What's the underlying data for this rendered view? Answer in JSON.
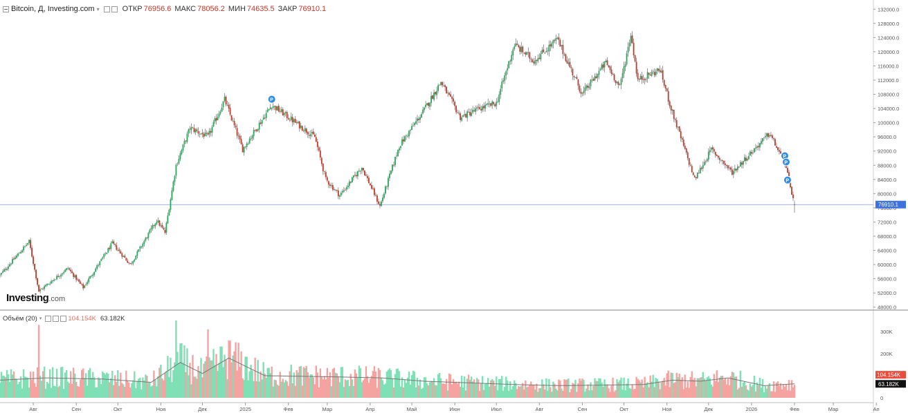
{
  "header": {
    "title": "Bitcoin, Д, Investing.com",
    "open_label": "ОТКР",
    "open_value": "76956.6",
    "high_label": "МАКС",
    "high_value": "78056.2",
    "low_label": "МИН",
    "low_value": "74635.5",
    "close_label": "ЗАКР",
    "close_value": "76910.1"
  },
  "volume_header": {
    "title": "Объём (20)",
    "value_a": "104.154K",
    "value_b": "63.182K"
  },
  "logo": {
    "main": "Investing",
    "suffix": ".com"
  },
  "colors": {
    "up": "#26a65b",
    "down": "#c0392b",
    "vol_up": "#7fe0b5",
    "vol_down": "#f5a3a0",
    "price_line": "#7b9ef0",
    "price_badge": "#3d72e0"
  },
  "chart_data": [
    {
      "type": "candlestick",
      "title": "Bitcoin, Д, Investing.com",
      "y_ticks": [
        "48000.0",
        "52000.0",
        "56000.0",
        "60000.0",
        "64000.0",
        "68000.0",
        "72000.0",
        "76000.0",
        "80000.0",
        "84000.0",
        "88000.0",
        "92000.0",
        "96000.0",
        "100000.0",
        "104000.0",
        "108000.0",
        "112000.0",
        "116000.0",
        "120000.0",
        "124000.0",
        "128000.0",
        "132000.0"
      ],
      "ylim": [
        46000,
        134000
      ],
      "x_ticks": [
        "Авг",
        "Сен",
        "Окт",
        "Ноя",
        "Дек",
        "2025",
        "Фев",
        "Мар",
        "Апр",
        "Май",
        "Июн",
        "Июл",
        "Авг",
        "Сен",
        "Окт",
        "Ноя",
        "Дек",
        "2026",
        "Фев",
        "Мар",
        "Ап"
      ],
      "last_price": "76910.1",
      "close_path": [
        {
          "date": "2024-07-08",
          "close": 57000
        },
        {
          "date": "2024-07-29",
          "close": 66500
        },
        {
          "date": "2024-08-05",
          "close": 52500
        },
        {
          "date": "2024-08-26",
          "close": 59000
        },
        {
          "date": "2024-09-06",
          "close": 53500
        },
        {
          "date": "2024-09-27",
          "close": 66000
        },
        {
          "date": "2024-10-10",
          "close": 60000
        },
        {
          "date": "2024-10-29",
          "close": 72500
        },
        {
          "date": "2024-11-04",
          "close": 69000
        },
        {
          "date": "2024-11-12",
          "close": 88000
        },
        {
          "date": "2024-11-22",
          "close": 98500
        },
        {
          "date": "2024-12-05",
          "close": 96000
        },
        {
          "date": "2024-12-17",
          "close": 106500
        },
        {
          "date": "2024-12-30",
          "close": 92500
        },
        {
          "date": "2025-01-20",
          "close": 105000
        },
        {
          "date": "2025-02-20",
          "close": 96000
        },
        {
          "date": "2025-02-28",
          "close": 84000
        },
        {
          "date": "2025-03-10",
          "close": 79500
        },
        {
          "date": "2025-03-26",
          "close": 87500
        },
        {
          "date": "2025-04-08",
          "close": 76500
        },
        {
          "date": "2025-04-22",
          "close": 93500
        },
        {
          "date": "2025-05-09",
          "close": 103000
        },
        {
          "date": "2025-05-22",
          "close": 111500
        },
        {
          "date": "2025-06-05",
          "close": 101500
        },
        {
          "date": "2025-06-19",
          "close": 104000
        },
        {
          "date": "2025-07-01",
          "close": 105500
        },
        {
          "date": "2025-07-14",
          "close": 122000
        },
        {
          "date": "2025-07-28",
          "close": 117500
        },
        {
          "date": "2025-08-14",
          "close": 123500
        },
        {
          "date": "2025-09-01",
          "close": 108000
        },
        {
          "date": "2025-09-18",
          "close": 117000
        },
        {
          "date": "2025-09-28",
          "close": 110000
        },
        {
          "date": "2025-10-06",
          "close": 125000
        },
        {
          "date": "2025-10-11",
          "close": 112000
        },
        {
          "date": "2025-10-27",
          "close": 115000
        },
        {
          "date": "2025-11-04",
          "close": 104000
        },
        {
          "date": "2025-11-21",
          "close": 84000
        },
        {
          "date": "2025-12-03",
          "close": 92500
        },
        {
          "date": "2025-12-18",
          "close": 86000
        },
        {
          "date": "2026-01-14",
          "close": 97000
        },
        {
          "date": "2026-01-25",
          "close": 88500
        },
        {
          "date": "2026-02-01",
          "close": 76910.1
        }
      ],
      "markers": [
        {
          "date": "2025-01-20",
          "label": "P"
        },
        {
          "date": "2026-01-25",
          "label": "P"
        },
        {
          "date": "2026-01-26",
          "label": "P"
        },
        {
          "date": "2026-01-27",
          "label": "P"
        }
      ]
    },
    {
      "type": "bar",
      "title": "Объём (20)",
      "y_ticks": [
        "0",
        "100K",
        "200K",
        "300K"
      ],
      "ylim": [
        -30000,
        360000
      ],
      "values_label_a": "104.154K",
      "values_label_b": "63.182K",
      "ma_path": [
        {
          "date": "2024-07-08",
          "v": 80000
        },
        {
          "date": "2024-08-10",
          "v": 90000
        },
        {
          "date": "2024-09-20",
          "v": 85000
        },
        {
          "date": "2024-10-25",
          "v": 70000
        },
        {
          "date": "2024-11-15",
          "v": 160000
        },
        {
          "date": "2024-12-01",
          "v": 110000
        },
        {
          "date": "2024-12-20",
          "v": 180000
        },
        {
          "date": "2025-01-15",
          "v": 100000
        },
        {
          "date": "2025-03-05",
          "v": 95000
        },
        {
          "date": "2025-04-10",
          "v": 90000
        },
        {
          "date": "2025-05-10",
          "v": 75000
        },
        {
          "date": "2025-07-15",
          "v": 60000
        },
        {
          "date": "2025-08-15",
          "v": 55000
        },
        {
          "date": "2025-10-15",
          "v": 60000
        },
        {
          "date": "2025-11-05",
          "v": 80000
        },
        {
          "date": "2025-11-25",
          "v": 75000
        },
        {
          "date": "2025-12-15",
          "v": 90000
        },
        {
          "date": "2026-01-10",
          "v": 55000
        },
        {
          "date": "2026-02-01",
          "v": 63182
        }
      ],
      "spikes": [
        {
          "date": "2024-08-05",
          "v": 330000
        },
        {
          "date": "2024-11-12",
          "v": 350000
        },
        {
          "date": "2024-12-05",
          "v": 310000
        }
      ]
    }
  ]
}
